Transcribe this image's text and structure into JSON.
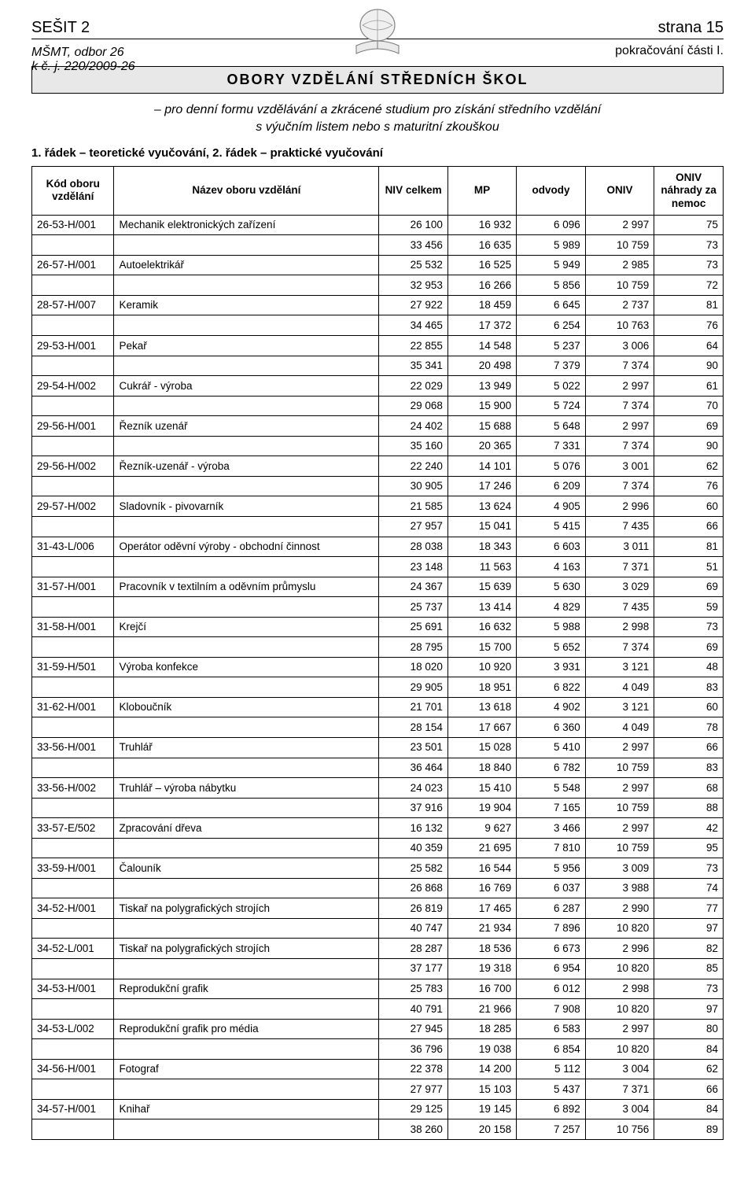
{
  "header": {
    "left": "SEŠIT 2",
    "right": "strana 15",
    "sub_left_line1": "MŠMT, odbor 26",
    "sub_left_line2": "k č. j. 220/2009-26",
    "sub_right": "pokračování části I."
  },
  "title": "OBORY VZDĚLÁNÍ STŘEDNÍCH ŠKOL",
  "intro_line1": "– pro denní formu vzdělávání a zkrácené studium pro získání středního vzdělání",
  "intro_line2": "s výučním listem nebo s maturitní zkouškou",
  "legend": "1. řádek – teoretické vyučování, 2. řádek – praktické vyučování",
  "columns": {
    "code": "Kód oboru vzdělání",
    "name": "Název oboru vzdělání",
    "niv": "NIV celkem",
    "mp": "MP",
    "odvody": "odvody",
    "oniv": "ONIV",
    "oniv_nahrady": "ONIV náhrady za nemoc"
  },
  "rows": [
    {
      "code": "26-53-H/001",
      "name": "Mechanik elektronických zařízení",
      "r1": [
        "26 100",
        "16 932",
        "6 096",
        "2 997",
        "75"
      ],
      "r2": [
        "33 456",
        "16 635",
        "5 989",
        "10 759",
        "73"
      ]
    },
    {
      "code": "26-57-H/001",
      "name": "Autoelektrikář",
      "r1": [
        "25 532",
        "16 525",
        "5 949",
        "2 985",
        "73"
      ],
      "r2": [
        "32 953",
        "16 266",
        "5 856",
        "10 759",
        "72"
      ]
    },
    {
      "code": "28-57-H/007",
      "name": "Keramik",
      "r1": [
        "27 922",
        "18 459",
        "6 645",
        "2 737",
        "81"
      ],
      "r2": [
        "34 465",
        "17 372",
        "6 254",
        "10 763",
        "76"
      ]
    },
    {
      "code": "29-53-H/001",
      "name": "Pekař",
      "r1": [
        "22 855",
        "14 548",
        "5 237",
        "3 006",
        "64"
      ],
      "r2": [
        "35 341",
        "20 498",
        "7 379",
        "7 374",
        "90"
      ]
    },
    {
      "code": "29-54-H/002",
      "name": "Cukrář - výroba",
      "r1": [
        "22 029",
        "13 949",
        "5 022",
        "2 997",
        "61"
      ],
      "r2": [
        "29 068",
        "15 900",
        "5 724",
        "7 374",
        "70"
      ]
    },
    {
      "code": "29-56-H/001",
      "name": "Řezník uzenář",
      "r1": [
        "24 402",
        "15 688",
        "5 648",
        "2 997",
        "69"
      ],
      "r2": [
        "35 160",
        "20 365",
        "7 331",
        "7 374",
        "90"
      ]
    },
    {
      "code": "29-56-H/002",
      "name": "Řezník-uzenář - výroba",
      "r1": [
        "22 240",
        "14 101",
        "5 076",
        "3 001",
        "62"
      ],
      "r2": [
        "30 905",
        "17 246",
        "6 209",
        "7 374",
        "76"
      ]
    },
    {
      "code": "29-57-H/002",
      "name": "Sladovník - pivovarník",
      "r1": [
        "21 585",
        "13 624",
        "4 905",
        "2 996",
        "60"
      ],
      "r2": [
        "27 957",
        "15 041",
        "5 415",
        "7 435",
        "66"
      ]
    },
    {
      "code": "31-43-L/006",
      "name": "Operátor oděvní výroby - obchodní činnost",
      "r1": [
        "28 038",
        "18 343",
        "6 603",
        "3 011",
        "81"
      ],
      "r2": [
        "23 148",
        "11 563",
        "4 163",
        "7 371",
        "51"
      ]
    },
    {
      "code": "31-57-H/001",
      "name": "Pracovník v textilním a oděvním průmyslu",
      "r1": [
        "24 367",
        "15 639",
        "5 630",
        "3 029",
        "69"
      ],
      "r2": [
        "25 737",
        "13 414",
        "4 829",
        "7 435",
        "59"
      ]
    },
    {
      "code": "31-58-H/001",
      "name": "Krejčí",
      "r1": [
        "25 691",
        "16 632",
        "5 988",
        "2 998",
        "73"
      ],
      "r2": [
        "28 795",
        "15 700",
        "5 652",
        "7 374",
        "69"
      ]
    },
    {
      "code": "31-59-H/501",
      "name": "Výroba konfekce",
      "r1": [
        "18 020",
        "10 920",
        "3 931",
        "3 121",
        "48"
      ],
      "r2": [
        "29 905",
        "18 951",
        "6 822",
        "4 049",
        "83"
      ]
    },
    {
      "code": "31-62-H/001",
      "name": "Kloboučník",
      "r1": [
        "21 701",
        "13 618",
        "4 902",
        "3 121",
        "60"
      ],
      "r2": [
        "28 154",
        "17 667",
        "6 360",
        "4 049",
        "78"
      ]
    },
    {
      "code": "33-56-H/001",
      "name": "Truhlář",
      "r1": [
        "23 501",
        "15 028",
        "5 410",
        "2 997",
        "66"
      ],
      "r2": [
        "36 464",
        "18 840",
        "6 782",
        "10 759",
        "83"
      ]
    },
    {
      "code": "33-56-H/002",
      "name": "Truhlář – výroba nábytku",
      "r1": [
        "24 023",
        "15 410",
        "5 548",
        "2 997",
        "68"
      ],
      "r2": [
        "37 916",
        "19 904",
        "7 165",
        "10 759",
        "88"
      ]
    },
    {
      "code": "33-57-E/502",
      "name": "Zpracování dřeva",
      "r1": [
        "16 132",
        "9 627",
        "3 466",
        "2 997",
        "42"
      ],
      "r2": [
        "40 359",
        "21 695",
        "7 810",
        "10 759",
        "95"
      ]
    },
    {
      "code": "33-59-H/001",
      "name": "Čalouník",
      "r1": [
        "25 582",
        "16 544",
        "5 956",
        "3 009",
        "73"
      ],
      "r2": [
        "26 868",
        "16 769",
        "6 037",
        "3 988",
        "74"
      ]
    },
    {
      "code": "34-52-H/001",
      "name": "Tiskař na polygrafických strojích",
      "r1": [
        "26 819",
        "17 465",
        "6 287",
        "2 990",
        "77"
      ],
      "r2": [
        "40 747",
        "21 934",
        "7 896",
        "10 820",
        "97"
      ]
    },
    {
      "code": "34-52-L/001",
      "name": "Tiskař na polygrafických strojích",
      "r1": [
        "28 287",
        "18 536",
        "6 673",
        "2 996",
        "82"
      ],
      "r2": [
        "37 177",
        "19 318",
        "6 954",
        "10 820",
        "85"
      ]
    },
    {
      "code": "34-53-H/001",
      "name": "Reprodukční grafik",
      "r1": [
        "25 783",
        "16 700",
        "6 012",
        "2 998",
        "73"
      ],
      "r2": [
        "40 791",
        "21 966",
        "7 908",
        "10 820",
        "97"
      ]
    },
    {
      "code": "34-53-L/002",
      "name": "Reprodukční grafik pro média",
      "r1": [
        "27 945",
        "18 285",
        "6 583",
        "2 997",
        "80"
      ],
      "r2": [
        "36 796",
        "19 038",
        "6 854",
        "10 820",
        "84"
      ]
    },
    {
      "code": "34-56-H/001",
      "name": "Fotograf",
      "r1": [
        "22 378",
        "14 200",
        "5 112",
        "3 004",
        "62"
      ],
      "r2": [
        "27 977",
        "15 103",
        "5 437",
        "7 371",
        "66"
      ]
    },
    {
      "code": "34-57-H/001",
      "name": "Knihař",
      "r1": [
        "29 125",
        "19 145",
        "6 892",
        "3 004",
        "84"
      ],
      "r2": [
        "38 260",
        "20 158",
        "7 257",
        "10 756",
        "89"
      ]
    }
  ]
}
